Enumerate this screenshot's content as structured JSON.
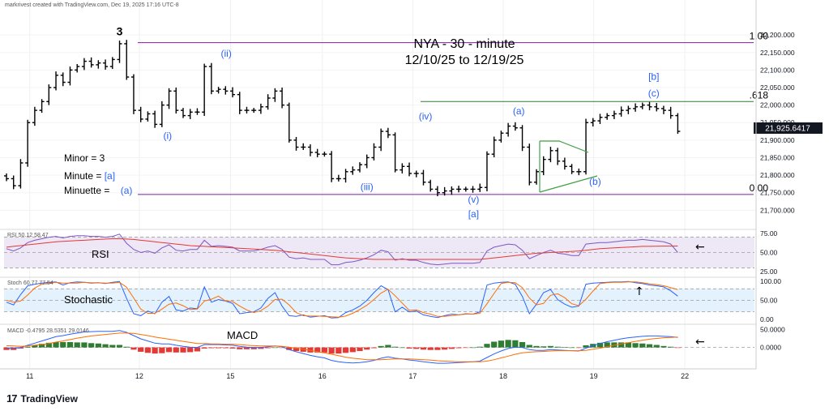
{
  "header": {
    "watermark": "markrivest created with TradingView.com, Dec 19, 2025 17:16 UTC-8"
  },
  "branding": {
    "logo_mark": "17",
    "logo_text": "TradingView"
  },
  "title": {
    "line1": "NYA - 30 - minute",
    "line2": "12/10/25 to 12/19/25"
  },
  "legend": {
    "minor": "Minor = 3",
    "minute_prefix": "Minute = ",
    "minute_value": "[a]",
    "minuette_prefix": "Minuette = ",
    "minuette_value": "(a)"
  },
  "colors": {
    "bar": "#000000",
    "wave_label": "#2962ff",
    "fib_line": "#7b1fa2",
    "fib_618": "#2e7d32",
    "triangle": "#43a047",
    "rsi_line": "#7e57c2",
    "rsi_ma": "#e53935",
    "rsi_bg": "#ede7f6",
    "stoch_bg": "#e3f2fd",
    "stoch_k": "#2962ff",
    "stoch_d": "#ff6d00",
    "macd_line": "#2962ff",
    "signal_line": "#ff6d00",
    "hist_pos": "#2e7d32",
    "hist_neg": "#e53935"
  },
  "chart_data": [
    {
      "type": "ohlc",
      "x_axis_labels": [
        "11",
        "12",
        "15",
        "16",
        "17",
        "18",
        "19",
        "22"
      ],
      "y_ticks": [
        "22,200.000",
        "22,150.000",
        "22,100.000",
        "22,050.000",
        "22,000.000",
        "21,950.000",
        "21,900.000",
        "21,850.000",
        "21,800.000",
        "21,750.000",
        "21,700.000"
      ],
      "ylim": [
        21680,
        22235
      ],
      "last_price": "21,925.6417",
      "closes": [
        21790,
        21770,
        21835,
        21950,
        21985,
        22010,
        22050,
        22085,
        22065,
        22100,
        22110,
        22125,
        22115,
        22120,
        22110,
        22130,
        22175,
        22080,
        21985,
        21960,
        21975,
        21945,
        22000,
        22040,
        21985,
        21970,
        21980,
        21980,
        22110,
        22040,
        22045,
        22040,
        22030,
        21985,
        21985,
        21985,
        21995,
        22020,
        22040,
        22000,
        21900,
        21880,
        21880,
        21865,
        21860,
        21860,
        21790,
        21790,
        21810,
        21815,
        21830,
        21850,
        21880,
        21925,
        21915,
        21815,
        21825,
        21805,
        21805,
        21780,
        21760,
        21750,
        21755,
        21760,
        21760,
        21760,
        21760,
        21765,
        21860,
        21900,
        21920,
        21940,
        21935,
        21880,
        21780,
        21810,
        21845,
        21870,
        21840,
        21825,
        21810,
        21810,
        21950,
        21955,
        21965,
        21970,
        21975,
        21985,
        21990,
        21995,
        22000,
        21995,
        21990,
        21985,
        21970,
        21925
      ],
      "fib_levels": [
        {
          "label": "1.00",
          "value": 22178
        },
        {
          "label": ".618",
          "value": 22010
        },
        {
          "label": "0.00",
          "value": 21745
        }
      ],
      "wave_labels": [
        {
          "text": "3",
          "color": "black"
        },
        {
          "text": "(i)",
          "color": "blue"
        },
        {
          "text": "(ii)",
          "color": "blue"
        },
        {
          "text": "(iii)",
          "color": "blue"
        },
        {
          "text": "(iv)",
          "color": "blue"
        },
        {
          "text": "(v)",
          "color": "blue"
        },
        {
          "text": "[a]",
          "color": "blue"
        },
        {
          "text": "(a)",
          "color": "blue"
        },
        {
          "text": "(b)",
          "color": "blue"
        },
        {
          "text": "[b]",
          "color": "blue"
        },
        {
          "text": "(c)",
          "color": "blue"
        }
      ]
    },
    {
      "type": "line",
      "name": "RSI",
      "legend": "RSI  50.12  58.47",
      "label": "RSI",
      "ylim": [
        22,
        78
      ],
      "y_ticks": [
        "75.00",
        "50.00",
        "25.00"
      ],
      "levels": [
        70,
        30
      ],
      "rsi": [
        55,
        52,
        56,
        63,
        66,
        68,
        70,
        71,
        69,
        71,
        72,
        72,
        71,
        71,
        70,
        71,
        74,
        62,
        54,
        50,
        52,
        49,
        56,
        60,
        53,
        52,
        54,
        54,
        66,
        58,
        59,
        58,
        57,
        52,
        52,
        52,
        54,
        57,
        59,
        54,
        44,
        42,
        43,
        41,
        41,
        41,
        34,
        34,
        37,
        38,
        40,
        43,
        47,
        53,
        51,
        40,
        42,
        40,
        40,
        37,
        35,
        34,
        35,
        36,
        36,
        36,
        36,
        37,
        52,
        57,
        59,
        61,
        60,
        53,
        42,
        46,
        50,
        53,
        49,
        48,
        46,
        46,
        61,
        62,
        63,
        63,
        64,
        65,
        66,
        66,
        67,
        66,
        65,
        64,
        61,
        50
      ],
      "rsi_ma": [
        57,
        58,
        59,
        60,
        61,
        62,
        63,
        64,
        64.5,
        65,
        65.5,
        66,
        66.5,
        67,
        67.5,
        68,
        68,
        67.5,
        67,
        66,
        65,
        64,
        63,
        62,
        61,
        60,
        59,
        58.5,
        58,
        57.5,
        57,
        56.5,
        56,
        55.5,
        55,
        54.5,
        54,
        53.5,
        53,
        52,
        51,
        50,
        49,
        48,
        47,
        46,
        45,
        44,
        43,
        42.5,
        42,
        41.5,
        41,
        41,
        41,
        41,
        41,
        41,
        41,
        41,
        41,
        41,
        41,
        41,
        41,
        41,
        41,
        41,
        42,
        43,
        44,
        45,
        46,
        47,
        48,
        49,
        49.5,
        50,
        50.5,
        51,
        51.5,
        52,
        53,
        54,
        55,
        55.5,
        56,
        56.5,
        57,
        57.5,
        58,
        58,
        58.2,
        58.3,
        58.4,
        58.5
      ]
    },
    {
      "type": "line",
      "name": "Stoch",
      "legend": "Stoch  60.77  77.54",
      "label": "Stochastic",
      "ylim": [
        -4,
        106
      ],
      "y_ticks": [
        "100.00",
        "50.00",
        "0.00"
      ],
      "levels": [
        80,
        20
      ],
      "k": [
        45,
        38,
        65,
        88,
        92,
        95,
        97,
        98,
        90,
        96,
        98,
        97,
        95,
        96,
        94,
        97,
        99,
        55,
        15,
        10,
        22,
        15,
        45,
        60,
        25,
        22,
        30,
        28,
        85,
        45,
        52,
        48,
        42,
        15,
        18,
        20,
        30,
        55,
        70,
        35,
        10,
        8,
        12,
        6,
        8,
        10,
        4,
        5,
        18,
        25,
        35,
        50,
        70,
        88,
        78,
        20,
        32,
        20,
        22,
        12,
        8,
        5,
        10,
        14,
        12,
        15,
        14,
        20,
        90,
        95,
        97,
        98,
        92,
        60,
        15,
        40,
        70,
        78,
        52,
        40,
        32,
        35,
        92,
        95,
        96,
        97,
        98,
        98,
        99,
        96,
        94,
        90,
        88,
        85,
        75,
        61
      ],
      "d": [
        50,
        45,
        48,
        64,
        82,
        92,
        95,
        97,
        95,
        95,
        95,
        97,
        96,
        96,
        95,
        95,
        97,
        84,
        56,
        27,
        16,
        16,
        27,
        40,
        43,
        36,
        26,
        27,
        48,
        53,
        61,
        48,
        47,
        35,
        25,
        18,
        23,
        35,
        52,
        53,
        38,
        18,
        10,
        9,
        9,
        8,
        7,
        6,
        9,
        16,
        26,
        37,
        52,
        69,
        79,
        62,
        43,
        24,
        25,
        18,
        14,
        8,
        8,
        10,
        12,
        14,
        14,
        16,
        41,
        68,
        94,
        97,
        96,
        83,
        56,
        38,
        42,
        63,
        67,
        57,
        41,
        36,
        53,
        74,
        94,
        96,
        97,
        97,
        98,
        98,
        96,
        93,
        91,
        88,
        83,
        78
      ]
    },
    {
      "type": "bar",
      "name": "MACD",
      "legend": "MACD  -0.4795  28.5351  29.0146",
      "label": "MACD",
      "ylim": [
        -55,
        60
      ],
      "y_ticks": [
        "50.0000",
        "0.0000"
      ],
      "macd": [
        -2,
        -3,
        0,
        6,
        12,
        18,
        24,
        30,
        33,
        37,
        40,
        43,
        44,
        45,
        45,
        45,
        47,
        42,
        33,
        24,
        18,
        12,
        10,
        10,
        6,
        3,
        1,
        0,
        8,
        8,
        8,
        7,
        6,
        3,
        1,
        0,
        0,
        2,
        4,
        2,
        -6,
        -12,
        -17,
        -22,
        -26,
        -29,
        -36,
        -40,
        -42,
        -43,
        -42,
        -40,
        -36,
        -30,
        -26,
        -30,
        -32,
        -35,
        -37,
        -40,
        -42,
        -44,
        -44,
        -43,
        -42,
        -41,
        -40,
        -38,
        -28,
        -18,
        -10,
        -3,
        1,
        0,
        -6,
        -8,
        -8,
        -6,
        -7,
        -8,
        -9,
        -10,
        -2,
        5,
        11,
        16,
        20,
        24,
        27,
        29,
        31,
        32,
        32,
        31,
        30,
        28
      ],
      "signal": [
        5,
        4,
        3,
        4,
        6,
        8,
        11,
        15,
        18,
        22,
        26,
        29,
        32,
        34,
        36,
        38,
        40,
        40,
        39,
        36,
        33,
        29,
        26,
        23,
        20,
        17,
        14,
        11,
        11,
        10,
        10,
        9,
        9,
        8,
        6,
        5,
        4,
        4,
        4,
        3,
        1,
        -2,
        -5,
        -8,
        -12,
        -15,
        -19,
        -23,
        -27,
        -30,
        -32,
        -34,
        -34,
        -34,
        -33,
        -32,
        -32,
        -32,
        -33,
        -34,
        -35,
        -37,
        -38,
        -39,
        -40,
        -40,
        -40,
        -40,
        -38,
        -34,
        -29,
        -24,
        -19,
        -15,
        -13,
        -12,
        -11,
        -10,
        -9,
        -9,
        -9,
        -9,
        -8,
        -5,
        -2,
        2,
        6,
        10,
        13,
        17,
        20,
        23,
        25,
        27,
        28,
        29
      ]
    }
  ]
}
